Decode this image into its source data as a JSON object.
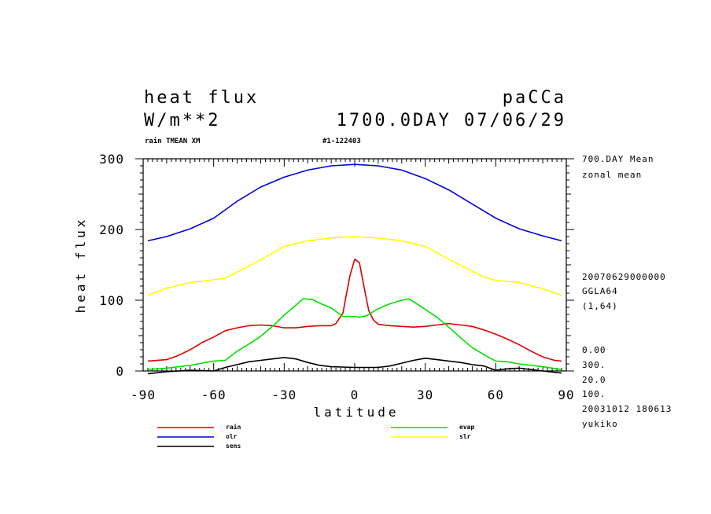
{
  "header": {
    "title": "heat flux",
    "units": "W/m**2",
    "model": "paCCa",
    "time": "1700.0DAY 07/06/29",
    "sub_left": "rain TMEAN XM",
    "sub_center": "#1-122403"
  },
  "side_info": {
    "mean_line1": "700.DAY Mean",
    "mean_line2": "zonal mean",
    "date_code": "20070629000000",
    "grid": "GGLA64",
    "index": "(1,64)",
    "p1": "0.00",
    "p2": "300.",
    "p3": "20.0",
    "p4": "100.",
    "run_id": "20031012 180613",
    "user": "yukiko"
  },
  "colors": {
    "rain": "#e00000",
    "olr": "#0000e0",
    "sens": "#000000",
    "evap": "#00e000",
    "slr": "#ffff00"
  },
  "chart_data": {
    "type": "line",
    "title": "heat flux",
    "xlabel": "latitude",
    "ylabel": "heat flux",
    "xlim": [
      -90,
      90
    ],
    "ylim": [
      0,
      300
    ],
    "xticks": [
      -90,
      -60,
      -30,
      0,
      30,
      60,
      90
    ],
    "yticks": [
      0,
      100,
      200,
      300
    ],
    "grid": false,
    "legend_position": "bottom",
    "series": [
      {
        "name": "rain",
        "color": "#e00000",
        "x": [
          -88,
          -80,
          -75,
          -70,
          -65,
          -60,
          -55,
          -50,
          -45,
          -40,
          -35,
          -30,
          -25,
          -20,
          -15,
          -10,
          -8,
          -5,
          -4,
          -2,
          0,
          2,
          4,
          6,
          8,
          10,
          15,
          20,
          25,
          30,
          35,
          40,
          45,
          50,
          55,
          60,
          65,
          70,
          75,
          80,
          85,
          88
        ],
        "y": [
          14,
          16,
          22,
          30,
          40,
          48,
          57,
          61,
          64,
          65,
          64,
          61,
          61,
          63,
          64,
          64,
          67,
          82,
          100,
          135,
          158,
          153,
          118,
          85,
          72,
          66,
          64,
          63,
          62,
          63,
          65,
          67,
          65,
          63,
          58,
          52,
          45,
          37,
          28,
          20,
          15,
          14
        ]
      },
      {
        "name": "olr",
        "color": "#0000e0",
        "x": [
          -88,
          -80,
          -70,
          -60,
          -50,
          -40,
          -30,
          -20,
          -10,
          0,
          10,
          20,
          30,
          40,
          50,
          60,
          70,
          80,
          88
        ],
        "y": [
          184,
          190,
          201,
          216,
          240,
          260,
          274,
          284,
          290,
          292,
          290,
          284,
          272,
          256,
          236,
          216,
          201,
          191,
          184
        ]
      },
      {
        "name": "sens",
        "color": "#000000",
        "x": [
          -88,
          -80,
          -70,
          -60,
          -55,
          -50,
          -45,
          -40,
          -35,
          -30,
          -25,
          -20,
          -15,
          -10,
          0,
          10,
          15,
          20,
          25,
          30,
          35,
          40,
          45,
          50,
          55,
          60,
          65,
          70,
          80,
          88
        ],
        "y": [
          -4,
          -1,
          1,
          0,
          5,
          9,
          13,
          15,
          17,
          19,
          17,
          12,
          8,
          6,
          5,
          5,
          7,
          11,
          15,
          18,
          16,
          14,
          12,
          9,
          7,
          1,
          3,
          4,
          0,
          -3
        ]
      },
      {
        "name": "evap",
        "color": "#00e000",
        "x": [
          -88,
          -80,
          -70,
          -60,
          -55,
          -50,
          -45,
          -40,
          -35,
          -30,
          -25,
          -22,
          -18,
          -15,
          -10,
          -5,
          -2,
          0,
          2,
          5,
          10,
          15,
          20,
          23,
          25,
          30,
          35,
          40,
          45,
          50,
          55,
          60,
          65,
          70,
          80,
          88
        ],
        "y": [
          2,
          4,
          8,
          14,
          15,
          28,
          38,
          49,
          63,
          79,
          93,
          102,
          101,
          96,
          89,
          77,
          77,
          77,
          76,
          78,
          88,
          95,
          100,
          102,
          98,
          87,
          76,
          62,
          47,
          33,
          23,
          14,
          13,
          10,
          6,
          2
        ]
      },
      {
        "name": "slr",
        "color": "#ffff00",
        "x": [
          -88,
          -80,
          -70,
          -60,
          -55,
          -50,
          -40,
          -30,
          -20,
          -10,
          0,
          10,
          20,
          30,
          40,
          50,
          55,
          60,
          70,
          80,
          88
        ],
        "y": [
          107,
          117,
          125,
          129,
          131,
          140,
          157,
          176,
          184,
          188,
          190,
          188,
          184,
          176,
          158,
          141,
          133,
          128,
          125,
          116,
          107
        ]
      }
    ]
  }
}
